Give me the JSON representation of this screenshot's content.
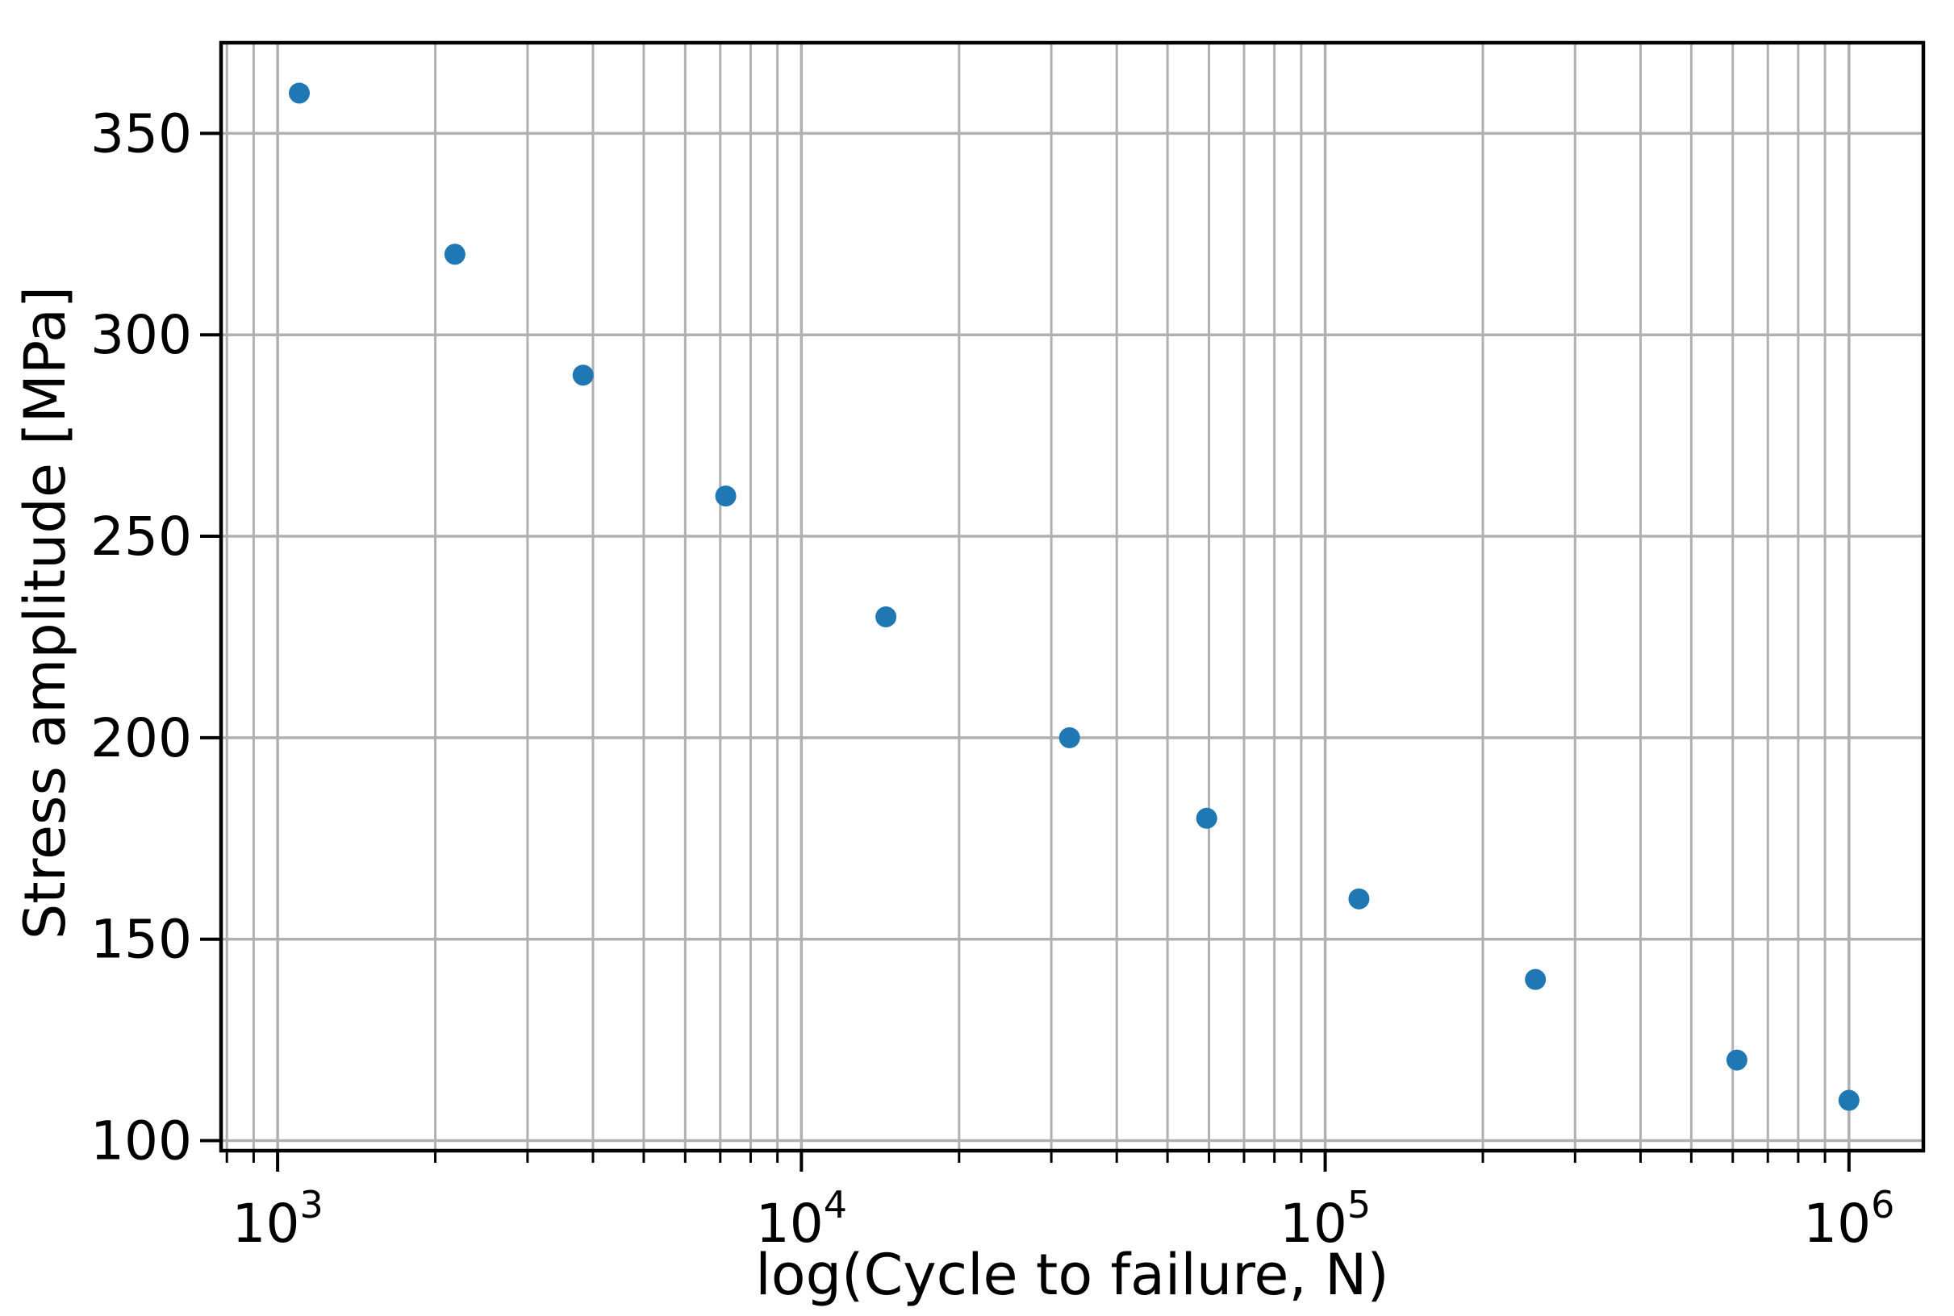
{
  "chart_data": {
    "type": "scatter",
    "xlabel": "log(Cycle to failure, N)",
    "ylabel": "Stress amplitude [MPa]",
    "x_scale": "log",
    "y_scale": "linear",
    "grid": "on, major and minor vertical log gridlines, major horizontal gridlines",
    "legend_position": "none",
    "xlim_log10": [
      2.892,
      6.142
    ],
    "ylim": [
      97.5,
      372.5
    ],
    "x_major_ticks": [
      {
        "value": 1000,
        "base": "10",
        "exponent": "3"
      },
      {
        "value": 10000,
        "base": "10",
        "exponent": "4"
      },
      {
        "value": 100000,
        "base": "10",
        "exponent": "5"
      },
      {
        "value": 1000000,
        "base": "10",
        "exponent": "6"
      }
    ],
    "y_ticks": [
      100,
      150,
      200,
      250,
      300,
      350
    ],
    "x_cycles": [
      1100,
      2180,
      3830,
      7170,
      14500,
      32500,
      59400,
      116000,
      252000,
      611000,
      1000000
    ],
    "y_stress_mpa": [
      360,
      320,
      290,
      260,
      230,
      200,
      180,
      160,
      140,
      120,
      110
    ],
    "marker": {
      "shape": "circle",
      "color": "#1f77b4"
    },
    "grid_color": "#b0b0b0",
    "axis_color": "#000000",
    "background_color": "#ffffff"
  }
}
